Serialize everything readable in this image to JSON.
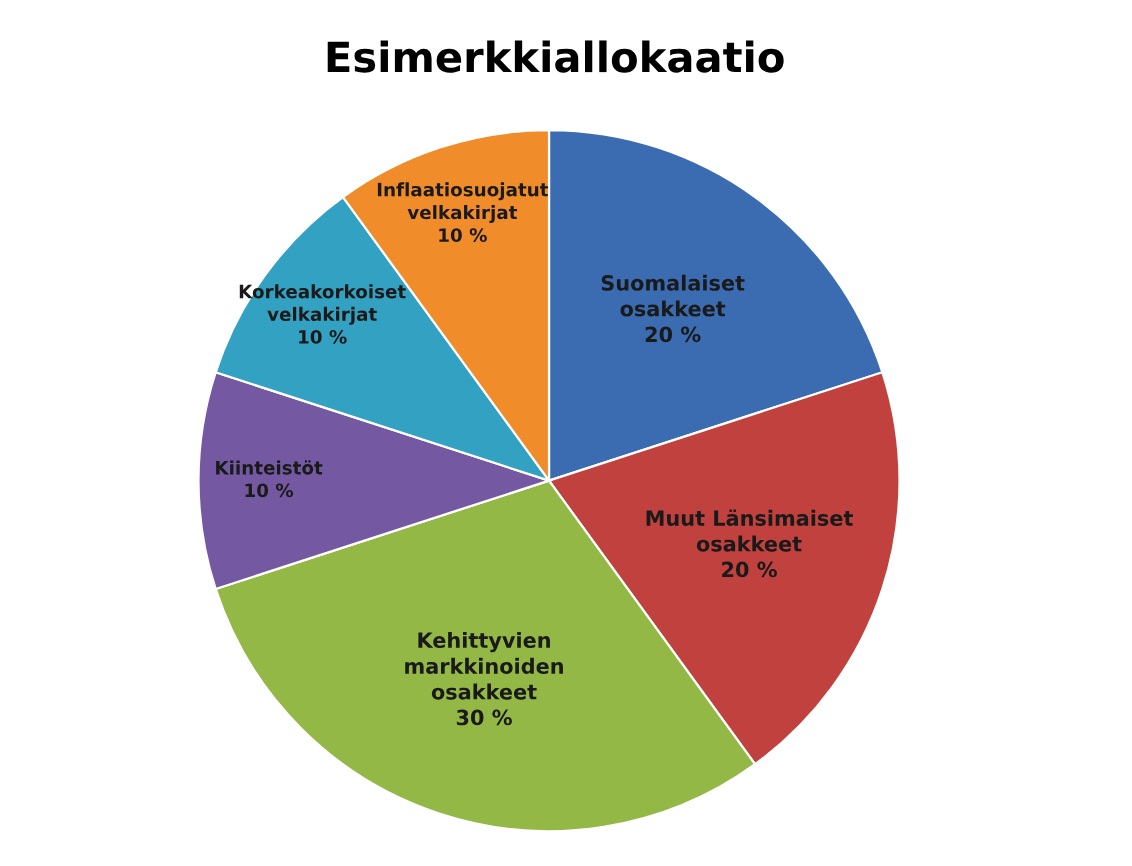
{
  "chart_data": {
    "type": "pie",
    "title": "Esimerkkiallokaatio",
    "categories": [
      "Suomalaiset\nosakkeet",
      "Muut Länsimaiset\nosakkeet",
      "Kehittyvien\nmarkkinoiden\nosakkeet",
      "Kiinteistöt",
      "Korkeakorkoiset\nvelkakirjat",
      "Inflaatiosuojatut\nvelkakirjat"
    ],
    "values": [
      20,
      20,
      30,
      10,
      10,
      10
    ],
    "value_labels": [
      "20 %",
      "20 %",
      "30 %",
      "10 %",
      "10 %",
      "10 %"
    ],
    "colors": [
      "#3b6cb2",
      "#c0413d",
      "#93b845",
      "#7459a2",
      "#33a2c2",
      "#f08d2a"
    ],
    "legend": false
  }
}
